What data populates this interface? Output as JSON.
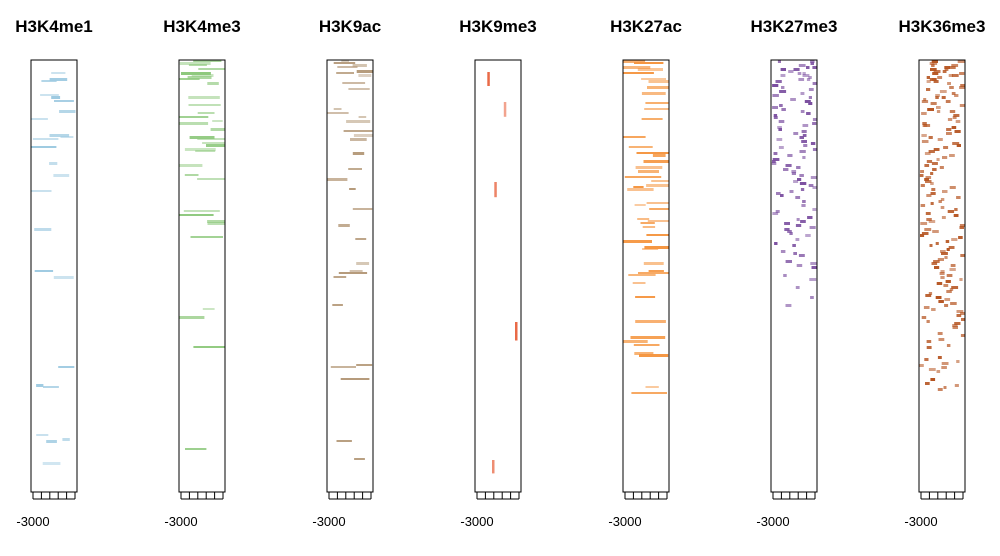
{
  "chart_data": [
    {
      "type": "heatmap",
      "title": "H3K4me1",
      "color": "#9ecae1",
      "tick_label": "-3000",
      "density": 0.32,
      "decay": 1.6,
      "mode": "lines"
    },
    {
      "type": "heatmap",
      "title": "H3K4me3",
      "color": "#8fc97e",
      "tick_label": "-3000",
      "density": 0.55,
      "decay": 2.2,
      "mode": "blocks"
    },
    {
      "type": "heatmap",
      "title": "H3K9ac",
      "color": "#b59a7a",
      "tick_label": "-3000",
      "density": 0.5,
      "decay": 1.9,
      "mode": "lines"
    },
    {
      "type": "heatmap",
      "title": "H3K9me3",
      "color": "#e8613c",
      "tick_label": "-3000",
      "density": 0.04,
      "decay": 0.6,
      "mode": "sparse"
    },
    {
      "type": "heatmap",
      "title": "H3K27ac",
      "color": "#f5953f",
      "tick_label": "-3000",
      "density": 0.62,
      "decay": 1.8,
      "mode": "blocks"
    },
    {
      "type": "heatmap",
      "title": "H3K27me3",
      "color": "#7b4fa0",
      "tick_label": "-3000",
      "density": 0.14,
      "decay": 1.1,
      "mode": "dots"
    },
    {
      "type": "heatmap",
      "title": "H3K36me3",
      "color": "#b5531f",
      "tick_label": "-3000",
      "density": 0.2,
      "decay": 1.0,
      "mode": "dots"
    }
  ]
}
